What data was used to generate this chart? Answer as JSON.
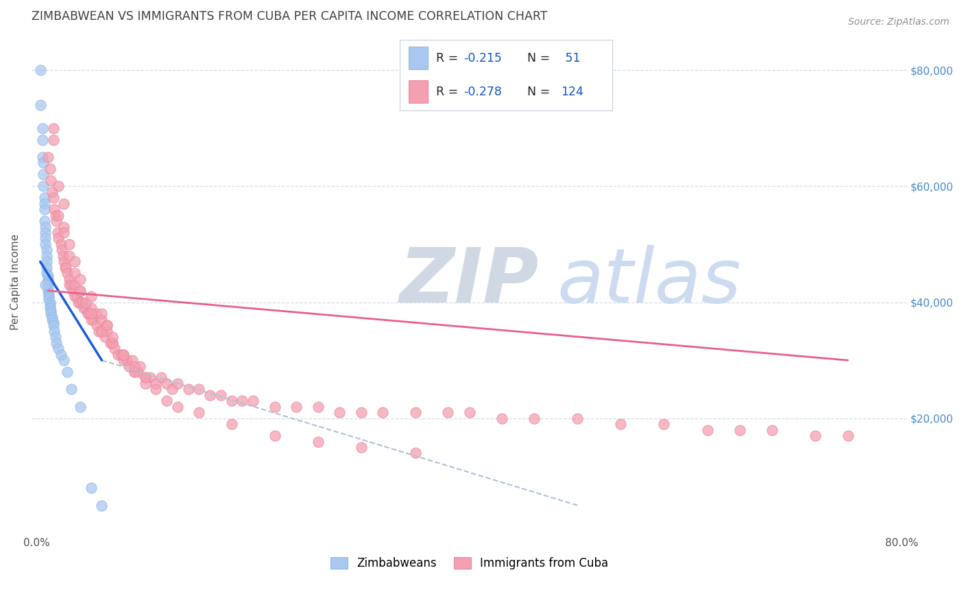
{
  "title": "ZIMBABWEAN VS IMMIGRANTS FROM CUBA PER CAPITA INCOME CORRELATION CHART",
  "source": "Source: ZipAtlas.com",
  "ylabel": "Per Capita Income",
  "xlim": [
    -0.005,
    0.805
  ],
  "ylim": [
    0,
    87000
  ],
  "yticks": [
    0,
    20000,
    40000,
    60000,
    80000
  ],
  "xticks": [
    0.0,
    0.1,
    0.2,
    0.3,
    0.4,
    0.5,
    0.6,
    0.7,
    0.8
  ],
  "zimbabwe_color": "#a8c8f0",
  "cuba_color": "#f4a0b0",
  "zimbabwe_line_color": "#1a5adc",
  "cuba_line_color": "#e8608a",
  "dashed_line_color": "#b0c0d8",
  "background_color": "#ffffff",
  "grid_color": "#d4dce8",
  "title_color": "#404040",
  "right_label_color": "#4488cc",
  "zimbabwe_x": [
    0.003,
    0.003,
    0.005,
    0.005,
    0.005,
    0.006,
    0.006,
    0.006,
    0.007,
    0.007,
    0.007,
    0.007,
    0.008,
    0.008,
    0.008,
    0.008,
    0.009,
    0.009,
    0.009,
    0.009,
    0.009,
    0.01,
    0.01,
    0.01,
    0.01,
    0.01,
    0.01,
    0.011,
    0.011,
    0.011,
    0.012,
    0.012,
    0.012,
    0.013,
    0.013,
    0.014,
    0.014,
    0.015,
    0.015,
    0.016,
    0.017,
    0.018,
    0.02,
    0.022,
    0.025,
    0.028,
    0.032,
    0.04,
    0.05,
    0.06,
    0.008
  ],
  "zimbabwe_y": [
    80000,
    74000,
    70000,
    68000,
    65000,
    64000,
    62000,
    60000,
    58000,
    57000,
    56000,
    54000,
    53000,
    52000,
    51000,
    50000,
    49000,
    48000,
    47000,
    46000,
    45000,
    44500,
    44000,
    43500,
    43000,
    42500,
    42000,
    41500,
    41000,
    40500,
    40000,
    39500,
    39000,
    38500,
    38000,
    37500,
    37000,
    36500,
    36000,
    35000,
    34000,
    33000,
    32000,
    31000,
    30000,
    28000,
    25000,
    22000,
    8000,
    5000,
    43000
  ],
  "cuba_x": [
    0.01,
    0.012,
    0.013,
    0.014,
    0.015,
    0.016,
    0.017,
    0.018,
    0.019,
    0.02,
    0.022,
    0.023,
    0.024,
    0.025,
    0.026,
    0.027,
    0.028,
    0.03,
    0.03,
    0.032,
    0.033,
    0.035,
    0.035,
    0.037,
    0.038,
    0.04,
    0.04,
    0.042,
    0.043,
    0.045,
    0.047,
    0.048,
    0.05,
    0.05,
    0.052,
    0.055,
    0.055,
    0.057,
    0.06,
    0.06,
    0.063,
    0.065,
    0.065,
    0.068,
    0.07,
    0.072,
    0.075,
    0.078,
    0.08,
    0.083,
    0.085,
    0.088,
    0.09,
    0.093,
    0.095,
    0.1,
    0.105,
    0.11,
    0.115,
    0.12,
    0.125,
    0.13,
    0.14,
    0.15,
    0.16,
    0.17,
    0.18,
    0.19,
    0.2,
    0.22,
    0.24,
    0.26,
    0.28,
    0.3,
    0.32,
    0.35,
    0.38,
    0.4,
    0.43,
    0.46,
    0.5,
    0.54,
    0.58,
    0.62,
    0.65,
    0.68,
    0.72,
    0.75,
    0.015,
    0.015,
    0.02,
    0.025,
    0.025,
    0.03,
    0.03,
    0.035,
    0.04,
    0.045,
    0.05,
    0.06,
    0.07,
    0.08,
    0.09,
    0.1,
    0.12,
    0.15,
    0.18,
    0.22,
    0.26,
    0.3,
    0.35,
    0.02,
    0.025,
    0.035,
    0.04,
    0.05,
    0.06,
    0.065,
    0.07,
    0.08,
    0.09,
    0.1,
    0.11,
    0.13
  ],
  "cuba_y": [
    65000,
    63000,
    61000,
    59000,
    58000,
    56000,
    55000,
    54000,
    52000,
    51000,
    50000,
    49000,
    48000,
    47000,
    46000,
    46000,
    45000,
    44000,
    43000,
    43000,
    42000,
    41000,
    43000,
    41000,
    40000,
    40000,
    42000,
    40000,
    39000,
    39000,
    38000,
    38000,
    37000,
    39000,
    37000,
    36000,
    38000,
    35000,
    35000,
    37000,
    34000,
    35000,
    36000,
    33000,
    33000,
    32000,
    31000,
    31000,
    30000,
    30000,
    29000,
    30000,
    28000,
    28000,
    29000,
    27000,
    27000,
    26000,
    27000,
    26000,
    25000,
    26000,
    25000,
    25000,
    24000,
    24000,
    23000,
    23000,
    23000,
    22000,
    22000,
    22000,
    21000,
    21000,
    21000,
    21000,
    21000,
    21000,
    20000,
    20000,
    20000,
    19000,
    19000,
    18000,
    18000,
    18000,
    17000,
    17000,
    70000,
    68000,
    60000,
    57000,
    53000,
    50000,
    48000,
    45000,
    42000,
    40000,
    38000,
    35000,
    33000,
    31000,
    28000,
    26000,
    23000,
    21000,
    19000,
    17000,
    16000,
    15000,
    14000,
    55000,
    52000,
    47000,
    44000,
    41000,
    38000,
    36000,
    34000,
    31000,
    29000,
    27000,
    25000,
    22000
  ],
  "zim_line_x0": 0.003,
  "zim_line_x1": 0.06,
  "zim_line_y0": 47000,
  "zim_line_y1": 30000,
  "cuba_line_x0": 0.01,
  "cuba_line_x1": 0.75,
  "cuba_line_y0": 42000,
  "cuba_line_y1": 30000,
  "dash_line_x0": 0.06,
  "dash_line_x1": 0.5,
  "dash_line_y0": 30000,
  "dash_line_y1": 5000
}
